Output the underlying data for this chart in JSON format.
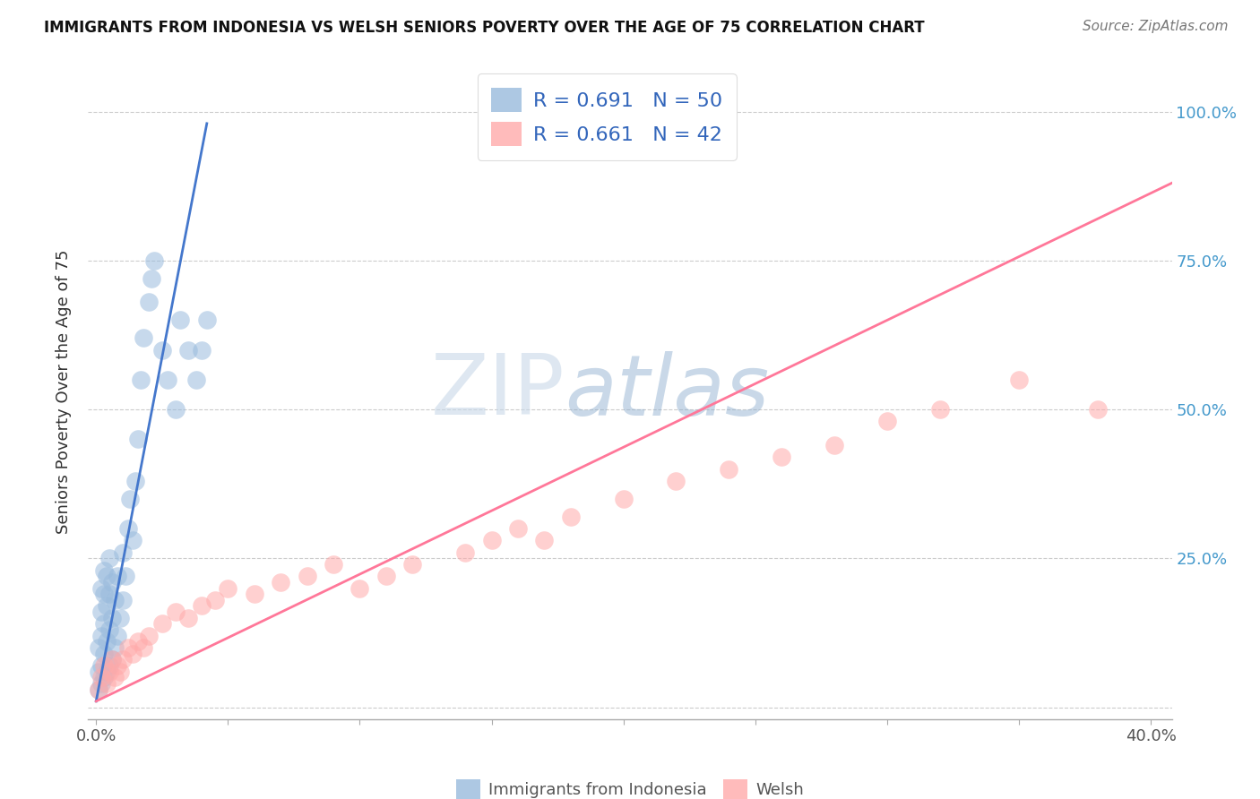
{
  "title": "IMMIGRANTS FROM INDONESIA VS WELSH SENIORS POVERTY OVER THE AGE OF 75 CORRELATION CHART",
  "source": "Source: ZipAtlas.com",
  "ylabel": "Seniors Poverty Over the Age of 75",
  "xlabel_blue": "Immigrants from Indonesia",
  "xlabel_pink": "Welsh",
  "xlim": [
    -0.003,
    0.408
  ],
  "ylim": [
    -0.02,
    1.08
  ],
  "yticks": [
    0.0,
    0.25,
    0.5,
    0.75,
    1.0
  ],
  "yticklabels_right": [
    "",
    "25.0%",
    "50.0%",
    "75.0%",
    "100.0%"
  ],
  "xtick_positions": [
    0.0,
    0.05,
    0.1,
    0.15,
    0.2,
    0.25,
    0.3,
    0.35,
    0.4
  ],
  "legend_blue_R": "0.691",
  "legend_blue_N": "50",
  "legend_pink_R": "0.661",
  "legend_pink_N": "42",
  "blue_color": "#99BBDD",
  "pink_color": "#FFAAAA",
  "blue_line_color": "#4477CC",
  "pink_line_color": "#FF7799",
  "watermark_zip": "ZIP",
  "watermark_atlas": "atlas",
  "blue_scatter_x": [
    0.001,
    0.001,
    0.001,
    0.002,
    0.002,
    0.002,
    0.002,
    0.002,
    0.003,
    0.003,
    0.003,
    0.003,
    0.003,
    0.004,
    0.004,
    0.004,
    0.004,
    0.005,
    0.005,
    0.005,
    0.005,
    0.006,
    0.006,
    0.006,
    0.007,
    0.007,
    0.008,
    0.008,
    0.009,
    0.01,
    0.01,
    0.011,
    0.012,
    0.013,
    0.014,
    0.015,
    0.016,
    0.017,
    0.018,
    0.02,
    0.021,
    0.022,
    0.025,
    0.027,
    0.03,
    0.032,
    0.035,
    0.038,
    0.04,
    0.042
  ],
  "blue_scatter_y": [
    0.03,
    0.06,
    0.1,
    0.04,
    0.07,
    0.12,
    0.16,
    0.2,
    0.05,
    0.09,
    0.14,
    0.19,
    0.23,
    0.06,
    0.11,
    0.17,
    0.22,
    0.07,
    0.13,
    0.19,
    0.25,
    0.08,
    0.15,
    0.21,
    0.1,
    0.18,
    0.12,
    0.22,
    0.15,
    0.18,
    0.26,
    0.22,
    0.3,
    0.35,
    0.28,
    0.38,
    0.45,
    0.55,
    0.62,
    0.68,
    0.72,
    0.75,
    0.6,
    0.55,
    0.5,
    0.65,
    0.6,
    0.55,
    0.6,
    0.65
  ],
  "pink_scatter_x": [
    0.001,
    0.002,
    0.003,
    0.004,
    0.005,
    0.006,
    0.007,
    0.008,
    0.009,
    0.01,
    0.012,
    0.014,
    0.016,
    0.018,
    0.02,
    0.025,
    0.03,
    0.035,
    0.04,
    0.045,
    0.05,
    0.06,
    0.07,
    0.08,
    0.09,
    0.1,
    0.11,
    0.12,
    0.14,
    0.15,
    0.16,
    0.17,
    0.18,
    0.2,
    0.22,
    0.24,
    0.26,
    0.28,
    0.3,
    0.32,
    0.35,
    0.38
  ],
  "pink_scatter_y": [
    0.03,
    0.05,
    0.07,
    0.04,
    0.06,
    0.08,
    0.05,
    0.07,
    0.06,
    0.08,
    0.1,
    0.09,
    0.11,
    0.1,
    0.12,
    0.14,
    0.16,
    0.15,
    0.17,
    0.18,
    0.2,
    0.19,
    0.21,
    0.22,
    0.24,
    0.2,
    0.22,
    0.24,
    0.26,
    0.28,
    0.3,
    0.28,
    0.32,
    0.35,
    0.38,
    0.4,
    0.42,
    0.44,
    0.48,
    0.5,
    0.55,
    0.5
  ],
  "blue_trend_x": [
    0.0,
    0.042
  ],
  "blue_trend_y": [
    0.01,
    0.98
  ],
  "pink_trend_x": [
    0.0,
    0.408
  ],
  "pink_trend_y": [
    0.01,
    0.88
  ]
}
